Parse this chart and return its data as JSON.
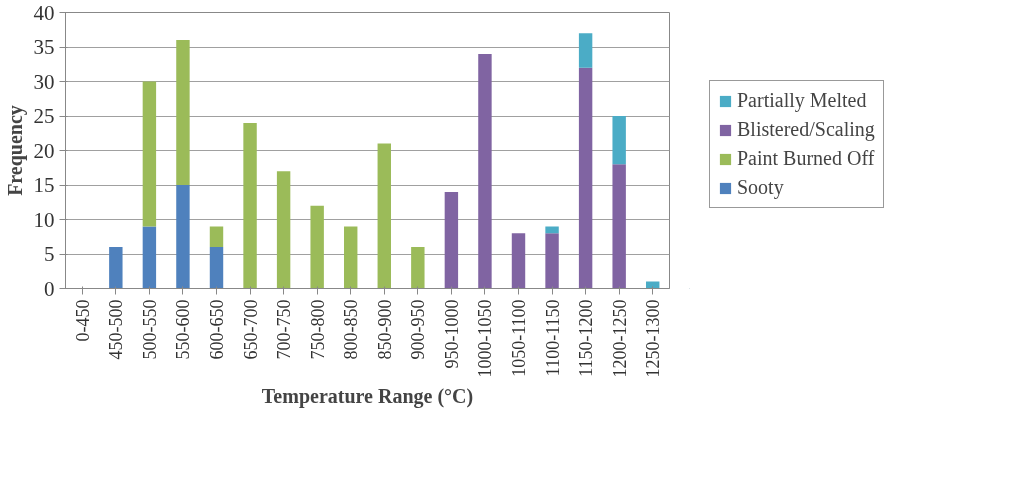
{
  "chart_data": {
    "type": "bar",
    "stacked": true,
    "xlabel": "Temperature Range (°C)",
    "ylabel": "Frequency",
    "categories": [
      "0-450",
      "450-500",
      "500-550",
      "550-600",
      "600-650",
      "650-700",
      "700-750",
      "750-800",
      "800-850",
      "850-900",
      "900-950",
      "950-1000",
      "1000-1050",
      "1050-1100",
      "1100-1150",
      "1150-1200",
      "1200-1250",
      "1250-1300"
    ],
    "series": [
      {
        "name": "Sooty",
        "color": "#4f81bd",
        "values": [
          0,
          6,
          9,
          15,
          6,
          0,
          0,
          0,
          0,
          0,
          0,
          0,
          0,
          0,
          0,
          0,
          0,
          0
        ]
      },
      {
        "name": "Paint Burned Off",
        "color": "#9bbb59",
        "values": [
          0,
          0,
          21,
          21,
          3,
          24,
          17,
          12,
          9,
          21,
          6,
          0,
          0,
          0,
          0,
          0,
          0,
          0
        ]
      },
      {
        "name": "Blistered/Scaling",
        "color": "#8064a2",
        "values": [
          0,
          0,
          0,
          0,
          0,
          0,
          0,
          0,
          0,
          0,
          0,
          14,
          34,
          8,
          8,
          32,
          18,
          0
        ]
      },
      {
        "name": "Partially Melted",
        "color": "#4bacc6",
        "values": [
          0,
          0,
          0,
          0,
          0,
          0,
          0,
          0,
          0,
          0,
          0,
          0,
          0,
          0,
          1,
          5,
          7,
          1
        ]
      }
    ],
    "ylim": [
      0,
      40
    ],
    "yticks": [
      0,
      5,
      10,
      15,
      20,
      25,
      30,
      35,
      40
    ],
    "grid": "y",
    "legend": "right"
  }
}
